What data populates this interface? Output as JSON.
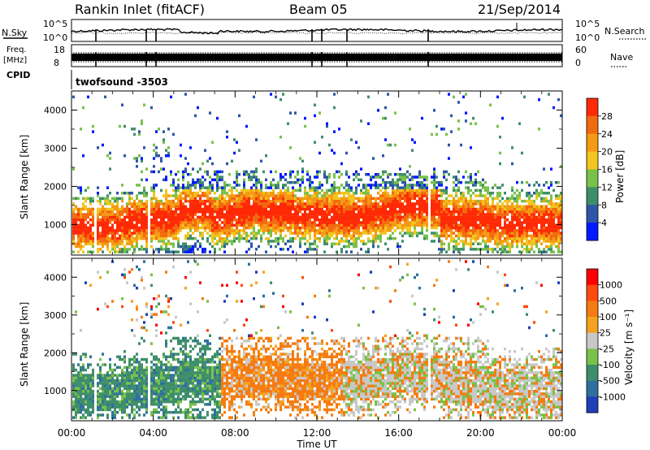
{
  "header": {
    "station": "Rankin Inlet (fitACF)",
    "beam": "Beam 05",
    "date": "21/Sep/2014"
  },
  "nsky_panel": {
    "left_label": "N.Sky",
    "right_label": "N.Search",
    "right_legend_style": "dotted",
    "left_ticks": [
      "10^5",
      "10^0"
    ],
    "right_ticks": [
      "10^5",
      "10^0"
    ]
  },
  "freq_panel": {
    "left_label_line1": "Freq.",
    "left_label_line2": "[MHz]",
    "right_label": "Nave",
    "right_legend_style": "dotted",
    "left_ticks": [
      "18",
      "8"
    ],
    "right_ticks": [
      "60",
      "0"
    ]
  },
  "cpid_panel": {
    "label": "CPID",
    "program": "twofsound -3503"
  },
  "chart_data": [
    {
      "type": "heatmap",
      "name": "power",
      "ylabel": "Slant Range [km]",
      "ylim": [
        200,
        4500
      ],
      "yticks": [
        "1000",
        "2000",
        "3000",
        "4000"
      ],
      "colorbar_label": "Power [dB]",
      "colorbar_levels": [
        "4",
        "8",
        "12",
        "16",
        "20",
        "24",
        "28"
      ],
      "colorbar_colors": [
        "#0019ff",
        "#2f55a8",
        "#3f8e6b",
        "#7ac14a",
        "#f2c51f",
        "#f59a14",
        "#f26a0f",
        "#ff2a05"
      ],
      "grid": false
    },
    {
      "type": "heatmap",
      "name": "velocity",
      "ylabel": "Slant Range [km]",
      "ylim": [
        200,
        4500
      ],
      "yticks": [
        "1000",
        "2000",
        "3000",
        "4000"
      ],
      "colorbar_label": "Velocity [m s⁻¹]",
      "colorbar_levels": [
        "1000",
        "500",
        "100",
        "25",
        "-25",
        "-100",
        "-500",
        "-1000"
      ],
      "colorbar_colors": [
        "#1e3fb8",
        "#2f6fa0",
        "#3f8e6b",
        "#7ac14a",
        "#c8c8c8",
        "#f5a21e",
        "#f57b12",
        "#ff4a10",
        "#ff0000"
      ],
      "xlabel": "Time UT",
      "xticks": [
        "00:00",
        "04:00",
        "08:00",
        "12:00",
        "16:00",
        "20:00",
        "00:00"
      ],
      "grid": false
    }
  ],
  "colors": {
    "frame": "#000000",
    "background": "#ffffff"
  }
}
